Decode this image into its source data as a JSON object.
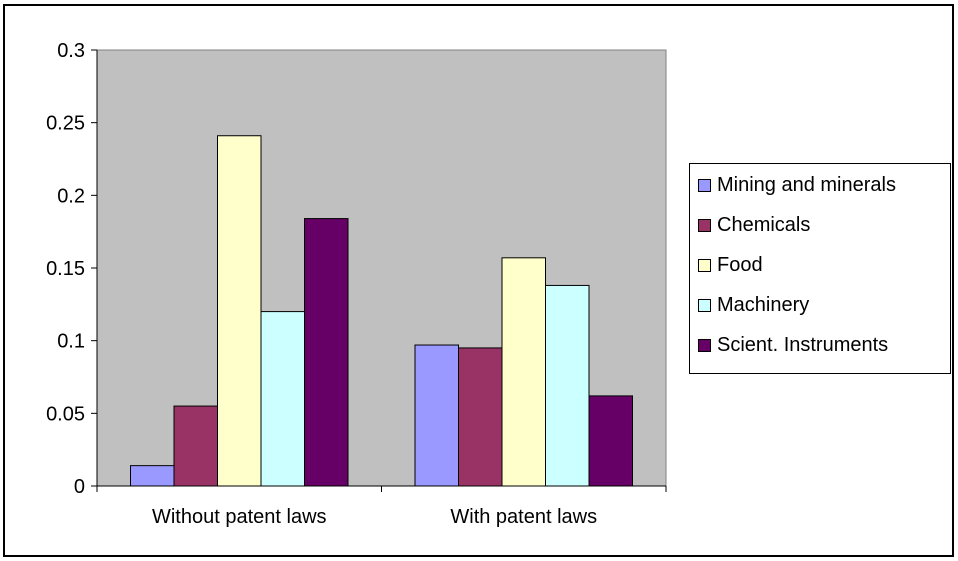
{
  "chart_data": {
    "type": "bar",
    "categories": [
      "Without patent laws",
      "With patent laws"
    ],
    "series": [
      {
        "name": "Mining and minerals",
        "color": "#9999ff",
        "values": [
          0.014,
          0.097
        ]
      },
      {
        "name": "Chemicals",
        "color": "#993366",
        "values": [
          0.055,
          0.095
        ]
      },
      {
        "name": "Food",
        "color": "#ffffcc",
        "values": [
          0.241,
          0.157
        ]
      },
      {
        "name": "Machinery",
        "color": "#ccffff",
        "values": [
          0.12,
          0.138
        ]
      },
      {
        "name": "Scient. Instruments",
        "color": "#660066",
        "values": [
          0.184,
          0.062
        ]
      }
    ],
    "ylim": [
      0,
      0.3
    ],
    "yticks": [
      "0",
      "0.05",
      "0.1",
      "0.15",
      "0.2",
      "0.25",
      "0.3"
    ],
    "plot_background": "#c0c0c0",
    "legend_position": "right",
    "grid": false
  }
}
